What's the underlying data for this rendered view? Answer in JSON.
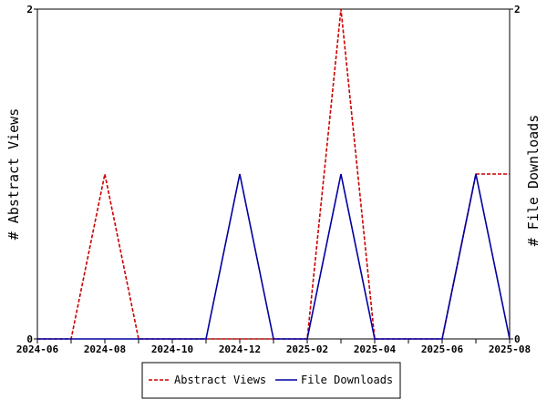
{
  "chart_data": {
    "type": "line",
    "x": [
      "2024-06",
      "2024-07",
      "2024-08",
      "2024-09",
      "2024-10",
      "2024-11",
      "2024-12",
      "2025-01",
      "2025-02",
      "2025-03",
      "2025-04",
      "2025-05",
      "2025-06",
      "2025-07",
      "2025-08"
    ],
    "x_ticks": [
      "2024-06",
      "2024-08",
      "2024-10",
      "2024-12",
      "2025-02",
      "2025-04",
      "2025-06",
      "2025-08"
    ],
    "series": [
      {
        "name": "Abstract Views",
        "axis": "left",
        "color": "#cc0000",
        "dash": "dashed",
        "values": [
          0,
          0,
          1,
          0,
          0,
          0,
          0,
          0,
          0,
          2,
          0,
          0,
          0,
          1,
          1
        ]
      },
      {
        "name": "File Downloads",
        "axis": "right",
        "color": "#0000a0",
        "dash": "solid",
        "values": [
          0,
          0,
          0,
          0,
          0,
          0,
          1,
          0,
          0,
          1,
          0,
          0,
          0,
          1,
          0
        ]
      }
    ],
    "ylabel_left": "# Abstract Views",
    "ylabel_right": "# File Downloads",
    "ylim_left": [
      0,
      2
    ],
    "ylim_right": [
      0,
      2
    ],
    "y_ticks_left": [
      "0",
      "2"
    ],
    "y_ticks_right": [
      "0",
      "2"
    ],
    "grid": false,
    "legend_position": "bottom"
  }
}
